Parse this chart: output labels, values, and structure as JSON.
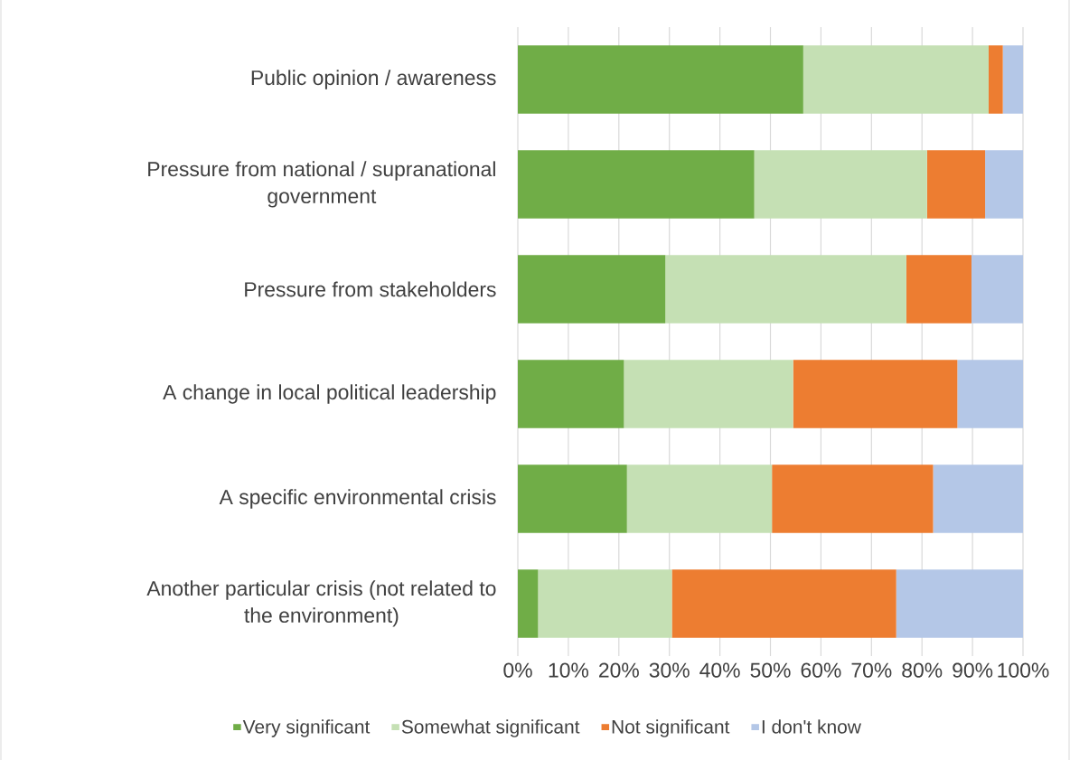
{
  "chart_data": {
    "type": "bar",
    "orientation": "horizontal",
    "stacked": true,
    "categories": [
      "Public opinion / awareness",
      "Pressure from national / supranational government",
      "Pressure from stakeholders",
      "A change in local political leadership",
      "A specific environmental crisis",
      "Another particular crisis (not related to the environment)"
    ],
    "series": [
      {
        "name": "Very significant",
        "color": "#70ad47",
        "values": [
          56.5,
          46.8,
          29.2,
          21.0,
          21.6,
          4.0
        ]
      },
      {
        "name": "Somewhat significant",
        "color": "#c5e0b4",
        "values": [
          36.7,
          34.2,
          47.7,
          33.5,
          28.7,
          26.5
        ]
      },
      {
        "name": "Not significant",
        "color": "#ed7d31",
        "values": [
          2.8,
          11.5,
          12.9,
          32.5,
          31.9,
          44.4
        ]
      },
      {
        "name": "I don't know",
        "color": "#b4c7e7",
        "values": [
          4.0,
          7.5,
          10.2,
          13.0,
          17.8,
          25.1
        ]
      }
    ],
    "xlim": [
      0,
      100
    ],
    "xticks": [
      {
        "value": 0,
        "label": "0%"
      },
      {
        "value": 10,
        "label": "10%"
      },
      {
        "value": 20,
        "label": "20%"
      },
      {
        "value": 30,
        "label": "30%"
      },
      {
        "value": 40,
        "label": "40%"
      },
      {
        "value": 50,
        "label": "50%"
      },
      {
        "value": 60,
        "label": "60%"
      },
      {
        "value": 70,
        "label": "70%"
      },
      {
        "value": 80,
        "label": "80%"
      },
      {
        "value": 90,
        "label": "90%"
      },
      {
        "value": 100,
        "label": "100%"
      }
    ],
    "grid": "x",
    "legend": "bottom"
  }
}
